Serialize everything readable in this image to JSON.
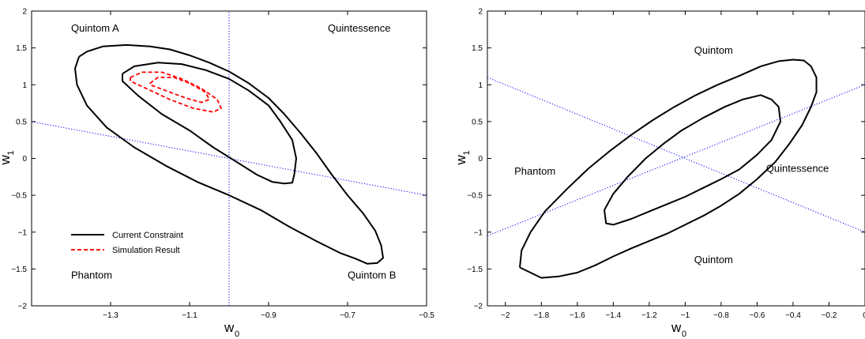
{
  "chart_data": [
    {
      "type": "line",
      "xlabel": "w",
      "xlabel_sub": "0",
      "ylabel": "w",
      "ylabel_sub": "1",
      "xlim": [
        -1.5,
        -0.5
      ],
      "ylim": [
        -2,
        2
      ],
      "xticks": [
        -1.3,
        -1.1,
        -0.9,
        -0.7,
        -0.5
      ],
      "xtick_labels": [
        "−1.3",
        "−1.1",
        "−0.9",
        "−0.7",
        "−0.5"
      ],
      "yticks": [
        -2,
        -1.5,
        -1,
        -0.5,
        0,
        0.5,
        1,
        1.5,
        2
      ],
      "ytick_labels": [
        "−2",
        "−1.5",
        "−1",
        "−0.5",
        "0",
        "0.5",
        "1",
        "1.5",
        "2"
      ],
      "grid": false,
      "legend_position": "lower-left",
      "legend": [
        {
          "label": "Current Constraint",
          "style": "solid",
          "color": "#000000"
        },
        {
          "label": "Simulation Result",
          "style": "dashed",
          "color": "#ff0000"
        }
      ],
      "region_labels": [
        {
          "text": "Quintom A",
          "x": -1.4,
          "y": 1.72
        },
        {
          "text": "Quintessence",
          "x": -0.75,
          "y": 1.72
        },
        {
          "text": "Phantom",
          "x": -1.4,
          "y": -1.63
        },
        {
          "text": "Quintom B",
          "x": -0.7,
          "y": -1.63
        }
      ],
      "reference_lines": [
        {
          "name": "w0=-1",
          "style": "dotted",
          "color": "#0000ff",
          "points": [
            [
              -1.0,
              -2.0
            ],
            [
              -1.0,
              2.0
            ]
          ]
        },
        {
          "name": "w0+w1=-1",
          "style": "dotted",
          "color": "#0000ff",
          "points": [
            [
              -1.5,
              0.5
            ],
            [
              -0.5,
              -0.5
            ]
          ]
        }
      ],
      "series": [
        {
          "style": "solid",
          "color": "#000000",
          "points": [
            [
              -1.38,
              1.38
            ],
            [
              -1.36,
              1.45
            ],
            [
              -1.32,
              1.52
            ],
            [
              -1.26,
              1.54
            ],
            [
              -1.2,
              1.52
            ],
            [
              -1.15,
              1.48
            ],
            [
              -1.1,
              1.4
            ],
            [
              -1.05,
              1.3
            ],
            [
              -1.0,
              1.18
            ],
            [
              -0.95,
              1.02
            ],
            [
              -0.9,
              0.82
            ],
            [
              -0.86,
              0.6
            ],
            [
              -0.82,
              0.35
            ],
            [
              -0.78,
              0.08
            ],
            [
              -0.74,
              -0.22
            ],
            [
              -0.7,
              -0.5
            ],
            [
              -0.66,
              -0.75
            ],
            [
              -0.63,
              -0.98
            ],
            [
              -0.615,
              -1.18
            ],
            [
              -0.61,
              -1.35
            ],
            [
              -0.625,
              -1.42
            ],
            [
              -0.65,
              -1.43
            ],
            [
              -0.68,
              -1.36
            ],
            [
              -0.72,
              -1.28
            ],
            [
              -0.78,
              -1.12
            ],
            [
              -0.85,
              -0.92
            ],
            [
              -0.92,
              -0.7
            ],
            [
              -1.0,
              -0.5
            ],
            [
              -1.08,
              -0.32
            ],
            [
              -1.16,
              -0.1
            ],
            [
              -1.24,
              0.15
            ],
            [
              -1.31,
              0.42
            ],
            [
              -1.36,
              0.72
            ],
            [
              -1.385,
              1.0
            ],
            [
              -1.39,
              1.22
            ],
            [
              -1.38,
              1.38
            ]
          ]
        },
        {
          "style": "solid",
          "color": "#000000",
          "points": [
            [
              -1.27,
              1.15
            ],
            [
              -1.24,
              1.25
            ],
            [
              -1.18,
              1.3
            ],
            [
              -1.12,
              1.28
            ],
            [
              -1.06,
              1.2
            ],
            [
              -1.0,
              1.08
            ],
            [
              -0.95,
              0.92
            ],
            [
              -0.9,
              0.72
            ],
            [
              -0.87,
              0.5
            ],
            [
              -0.84,
              0.25
            ],
            [
              -0.83,
              0.0
            ],
            [
              -0.835,
              -0.22
            ],
            [
              -0.84,
              -0.33
            ],
            [
              -0.86,
              -0.34
            ],
            [
              -0.89,
              -0.32
            ],
            [
              -0.93,
              -0.22
            ],
            [
              -0.98,
              -0.05
            ],
            [
              -1.04,
              0.15
            ],
            [
              -1.1,
              0.38
            ],
            [
              -1.17,
              0.6
            ],
            [
              -1.23,
              0.85
            ],
            [
              -1.27,
              1.05
            ],
            [
              -1.27,
              1.15
            ]
          ]
        },
        {
          "style": "dashed",
          "color": "#ff0000",
          "points": [
            [
              -1.25,
              1.1
            ],
            [
              -1.22,
              1.17
            ],
            [
              -1.17,
              1.17
            ],
            [
              -1.12,
              1.08
            ],
            [
              -1.07,
              0.95
            ],
            [
              -1.03,
              0.8
            ],
            [
              -1.02,
              0.68
            ],
            [
              -1.04,
              0.63
            ],
            [
              -1.09,
              0.68
            ],
            [
              -1.15,
              0.8
            ],
            [
              -1.21,
              0.95
            ],
            [
              -1.25,
              1.05
            ],
            [
              -1.25,
              1.1
            ]
          ]
        },
        {
          "style": "dashed",
          "color": "#ff0000",
          "points": [
            [
              -1.2,
              1.02
            ],
            [
              -1.18,
              1.1
            ],
            [
              -1.14,
              1.1
            ],
            [
              -1.1,
              1.02
            ],
            [
              -1.06,
              0.9
            ],
            [
              -1.05,
              0.8
            ],
            [
              -1.07,
              0.76
            ],
            [
              -1.11,
              0.82
            ],
            [
              -1.16,
              0.92
            ],
            [
              -1.2,
              1.0
            ],
            [
              -1.2,
              1.02
            ]
          ]
        }
      ]
    },
    {
      "type": "line",
      "xlabel": "w",
      "xlabel_sub": "0",
      "ylabel": "w",
      "ylabel_sub": "1",
      "xlim": [
        -2.1,
        0
      ],
      "ylim": [
        -2,
        2
      ],
      "xticks": [
        -2,
        -1.8,
        -1.6,
        -1.4,
        -1.2,
        -1,
        -0.8,
        -0.6,
        -0.4,
        -0.2,
        0
      ],
      "xtick_labels": [
        "−2",
        "−1.8",
        "−1.6",
        "−1.4",
        "−1.2",
        "−1",
        "−0.8",
        "−0.6",
        "−0.4",
        "−0.2",
        "0"
      ],
      "yticks": [
        -2,
        -1.5,
        -1,
        -0.5,
        0,
        0.5,
        1,
        1.5,
        2
      ],
      "ytick_labels": [
        "−2",
        "−1.5",
        "−1",
        "−0.5",
        "0",
        "0.5",
        "1",
        "1.5",
        "2"
      ],
      "grid": false,
      "region_labels": [
        {
          "text": "Quintom",
          "x": -0.95,
          "y": 1.42
        },
        {
          "text": "Phantom",
          "x": -1.95,
          "y": -0.22
        },
        {
          "text": "Quintessence",
          "x": -0.55,
          "y": -0.18
        },
        {
          "text": "Quintom",
          "x": -0.95,
          "y": -1.42
        }
      ],
      "reference_lines": [
        {
          "name": "positive-slope",
          "style": "dotted",
          "color": "#0000ff",
          "points": [
            [
              -2.1,
              -1.05
            ],
            [
              0.0,
              1.0
            ]
          ]
        },
        {
          "name": "negative-slope",
          "style": "dotted",
          "color": "#0000ff",
          "points": [
            [
              -2.1,
              1.1
            ],
            [
              0.0,
              -1.0
            ]
          ]
        }
      ],
      "series": [
        {
          "style": "solid",
          "color": "#000000",
          "points": [
            [
              -1.92,
              -1.48
            ],
            [
              -1.86,
              -1.55
            ],
            [
              -1.8,
              -1.62
            ],
            [
              -1.7,
              -1.6
            ],
            [
              -1.6,
              -1.55
            ],
            [
              -1.5,
              -1.45
            ],
            [
              -1.4,
              -1.33
            ],
            [
              -1.3,
              -1.22
            ],
            [
              -1.2,
              -1.12
            ],
            [
              -1.1,
              -1.02
            ],
            [
              -1.0,
              -0.9
            ],
            [
              -0.9,
              -0.78
            ],
            [
              -0.8,
              -0.64
            ],
            [
              -0.7,
              -0.48
            ],
            [
              -0.6,
              -0.28
            ],
            [
              -0.5,
              -0.05
            ],
            [
              -0.42,
              0.2
            ],
            [
              -0.35,
              0.45
            ],
            [
              -0.3,
              0.7
            ],
            [
              -0.27,
              0.9
            ],
            [
              -0.27,
              1.1
            ],
            [
              -0.3,
              1.25
            ],
            [
              -0.34,
              1.33
            ],
            [
              -0.4,
              1.34
            ],
            [
              -0.48,
              1.32
            ],
            [
              -0.58,
              1.25
            ],
            [
              -0.7,
              1.12
            ],
            [
              -0.82,
              1.0
            ],
            [
              -0.94,
              0.86
            ],
            [
              -1.06,
              0.7
            ],
            [
              -1.18,
              0.52
            ],
            [
              -1.3,
              0.32
            ],
            [
              -1.42,
              0.1
            ],
            [
              -1.54,
              -0.14
            ],
            [
              -1.66,
              -0.42
            ],
            [
              -1.78,
              -0.72
            ],
            [
              -1.86,
              -1.0
            ],
            [
              -1.91,
              -1.25
            ],
            [
              -1.92,
              -1.48
            ]
          ]
        },
        {
          "style": "solid",
          "color": "#000000",
          "points": [
            [
              -1.45,
              -0.7
            ],
            [
              -1.44,
              -0.88
            ],
            [
              -1.4,
              -0.9
            ],
            [
              -1.3,
              -0.82
            ],
            [
              -1.2,
              -0.72
            ],
            [
              -1.1,
              -0.62
            ],
            [
              -1.0,
              -0.52
            ],
            [
              -0.9,
              -0.4
            ],
            [
              -0.8,
              -0.28
            ],
            [
              -0.7,
              -0.15
            ],
            [
              -0.6,
              0.05
            ],
            [
              -0.52,
              0.25
            ],
            [
              -0.47,
              0.5
            ],
            [
              -0.48,
              0.7
            ],
            [
              -0.52,
              0.8
            ],
            [
              -0.58,
              0.86
            ],
            [
              -0.68,
              0.8
            ],
            [
              -0.78,
              0.7
            ],
            [
              -0.9,
              0.55
            ],
            [
              -1.02,
              0.38
            ],
            [
              -1.12,
              0.2
            ],
            [
              -1.22,
              0.0
            ],
            [
              -1.32,
              -0.25
            ],
            [
              -1.4,
              -0.48
            ],
            [
              -1.45,
              -0.7
            ]
          ]
        }
      ]
    }
  ]
}
